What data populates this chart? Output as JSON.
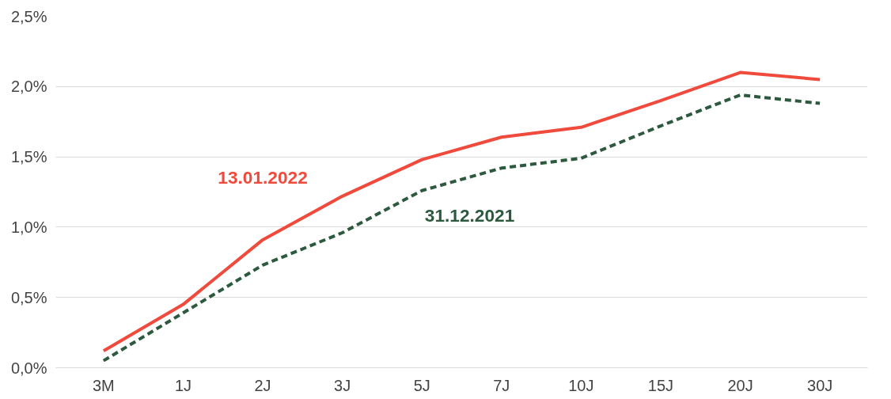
{
  "chart_data": {
    "type": "line",
    "categories": [
      "3M",
      "1J",
      "2J",
      "3J",
      "5J",
      "7J",
      "10J",
      "15J",
      "20J",
      "30J"
    ],
    "series": [
      {
        "name": "13.01.2022",
        "color": "#ef4a3c",
        "line_style": "solid",
        "values": [
          0.12,
          0.45,
          0.91,
          1.22,
          1.48,
          1.64,
          1.71,
          1.9,
          2.1,
          2.05
        ]
      },
      {
        "name": "31.12.2021",
        "color": "#2d5a3f",
        "line_style": "dashed",
        "values": [
          0.05,
          0.39,
          0.73,
          0.96,
          1.26,
          1.42,
          1.49,
          1.72,
          1.94,
          1.88
        ]
      }
    ],
    "ylim": [
      0,
      2.5
    ],
    "yticks": [
      {
        "value": 0,
        "label": "0,0%"
      },
      {
        "value": 0.5,
        "label": "0,5%"
      },
      {
        "value": 1,
        "label": "1,0%"
      },
      {
        "value": 1.5,
        "label": "1,5%"
      },
      {
        "value": 2,
        "label": "2,0%"
      },
      {
        "value": 2.5,
        "label": "2,5%"
      }
    ],
    "grid": "y",
    "marker": "none"
  }
}
